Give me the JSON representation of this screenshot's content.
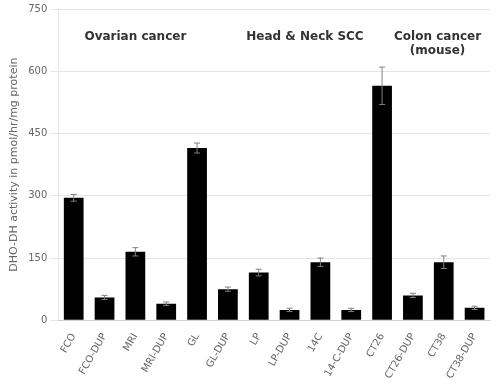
{
  "chart_data": {
    "type": "bar",
    "categories": [
      "FCO",
      "FCO-DUP",
      "MRI",
      "MRI-DUP",
      "GL",
      "GL-DUP",
      "LP",
      "LP-DUP",
      "14C",
      "14-C-DUP",
      "CT26",
      "CT26-DUP",
      "CT38",
      "CT38-DUP"
    ],
    "values": [
      295,
      55,
      165,
      40,
      415,
      75,
      115,
      25,
      140,
      25,
      565,
      60,
      140,
      30
    ],
    "errors": [
      8,
      5,
      10,
      4,
      12,
      5,
      8,
      4,
      10,
      4,
      45,
      5,
      15,
      4
    ],
    "color": "#000000",
    "ylabel": "DHO-DH activity in pmol/hr/mg protein",
    "ylim": [
      0,
      750
    ],
    "yticks": [
      0,
      150,
      300,
      450,
      600,
      750
    ],
    "grid": true,
    "annotations": [
      "Ovarian cancer",
      "Head & Neck SCC",
      "Colon cancer\n(mouse)"
    ]
  }
}
